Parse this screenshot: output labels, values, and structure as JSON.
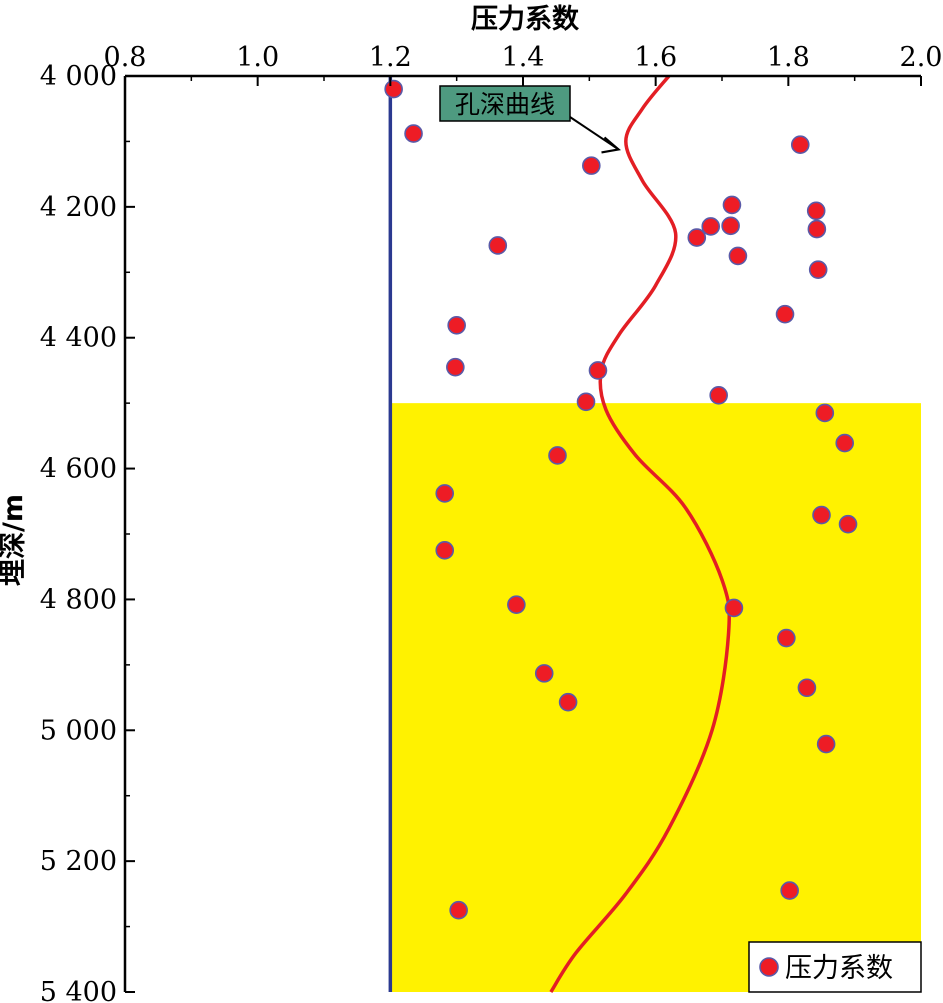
{
  "chart_data": {
    "type": "scatter",
    "xlabel": "压力系数",
    "ylabel": "埋深/m",
    "xlim": [
      0.8,
      2.0
    ],
    "ylim": [
      4000,
      5400
    ],
    "y_inverted": true,
    "x_axis_position": "top",
    "x_ticks": [
      "0.8",
      "1.0",
      "1.2",
      "1.4",
      "1.6",
      "1.8",
      "2.0"
    ],
    "x_tick_values": [
      0.8,
      1.0,
      1.2,
      1.4,
      1.6,
      1.8,
      2.0
    ],
    "y_ticks": [
      "4 000",
      "4 200",
      "4 400",
      "4 600",
      "4 800",
      "5 000",
      "5 200",
      "5 400"
    ],
    "y_tick_values": [
      4000,
      4200,
      4400,
      4600,
      4800,
      5000,
      5200,
      5400
    ],
    "grid": false,
    "legend": {
      "position": "bottom-right",
      "entries": [
        "压力系数"
      ]
    },
    "colors": {
      "points": "#ee1c25",
      "point_edge": "#5a5aa8",
      "curve": "#e31e24",
      "hydrostatic_line": "#2b3990",
      "overpressure_zone": "#fff200",
      "annotation_fill": "#4e9a80"
    },
    "hydrostatic_line_x": 1.2,
    "overpressure_zone": {
      "x_range": [
        1.2,
        2.0
      ],
      "y_range": [
        4500,
        5400
      ]
    },
    "annotation": {
      "text": "孔深曲线",
      "points_to": {
        "x": 1.55,
        "y": 4100
      }
    },
    "series": [
      {
        "name": "压力系数",
        "points": [
          {
            "x": 1.205,
            "y": 4020
          },
          {
            "x": 1.235,
            "y": 4088
          },
          {
            "x": 1.503,
            "y": 4137
          },
          {
            "x": 1.818,
            "y": 4105
          },
          {
            "x": 1.715,
            "y": 4197
          },
          {
            "x": 1.842,
            "y": 4206
          },
          {
            "x": 1.713,
            "y": 4229
          },
          {
            "x": 1.683,
            "y": 4230
          },
          {
            "x": 1.843,
            "y": 4234
          },
          {
            "x": 1.662,
            "y": 4247
          },
          {
            "x": 1.362,
            "y": 4259
          },
          {
            "x": 1.724,
            "y": 4275
          },
          {
            "x": 1.845,
            "y": 4296
          },
          {
            "x": 1.795,
            "y": 4364
          },
          {
            "x": 1.3,
            "y": 4381
          },
          {
            "x": 1.298,
            "y": 4445
          },
          {
            "x": 1.513,
            "y": 4450
          },
          {
            "x": 1.695,
            "y": 4488
          },
          {
            "x": 1.495,
            "y": 4498
          },
          {
            "x": 1.855,
            "y": 4515
          },
          {
            "x": 1.885,
            "y": 4561
          },
          {
            "x": 1.452,
            "y": 4580
          },
          {
            "x": 1.282,
            "y": 4638
          },
          {
            "x": 1.85,
            "y": 4671
          },
          {
            "x": 1.89,
            "y": 4685
          },
          {
            "x": 1.282,
            "y": 4725
          },
          {
            "x": 1.39,
            "y": 4808
          },
          {
            "x": 1.718,
            "y": 4813
          },
          {
            "x": 1.797,
            "y": 4859
          },
          {
            "x": 1.432,
            "y": 4913
          },
          {
            "x": 1.828,
            "y": 4935
          },
          {
            "x": 1.468,
            "y": 4957
          },
          {
            "x": 1.857,
            "y": 5021
          },
          {
            "x": 1.802,
            "y": 5245
          },
          {
            "x": 1.303,
            "y": 5275
          }
        ]
      },
      {
        "name": "孔深曲线",
        "kind": "line",
        "points": [
          {
            "x": 1.62,
            "y": 4000
          },
          {
            "x": 1.58,
            "y": 4050
          },
          {
            "x": 1.555,
            "y": 4100
          },
          {
            "x": 1.58,
            "y": 4160
          },
          {
            "x": 1.63,
            "y": 4240
          },
          {
            "x": 1.6,
            "y": 4320
          },
          {
            "x": 1.545,
            "y": 4395
          },
          {
            "x": 1.518,
            "y": 4450
          },
          {
            "x": 1.525,
            "y": 4510
          },
          {
            "x": 1.57,
            "y": 4580
          },
          {
            "x": 1.645,
            "y": 4660
          },
          {
            "x": 1.7,
            "y": 4770
          },
          {
            "x": 1.71,
            "y": 4850
          },
          {
            "x": 1.685,
            "y": 5000
          },
          {
            "x": 1.62,
            "y": 5150
          },
          {
            "x": 1.555,
            "y": 5250
          },
          {
            "x": 1.48,
            "y": 5340
          },
          {
            "x": 1.442,
            "y": 5400
          }
        ]
      }
    ]
  }
}
